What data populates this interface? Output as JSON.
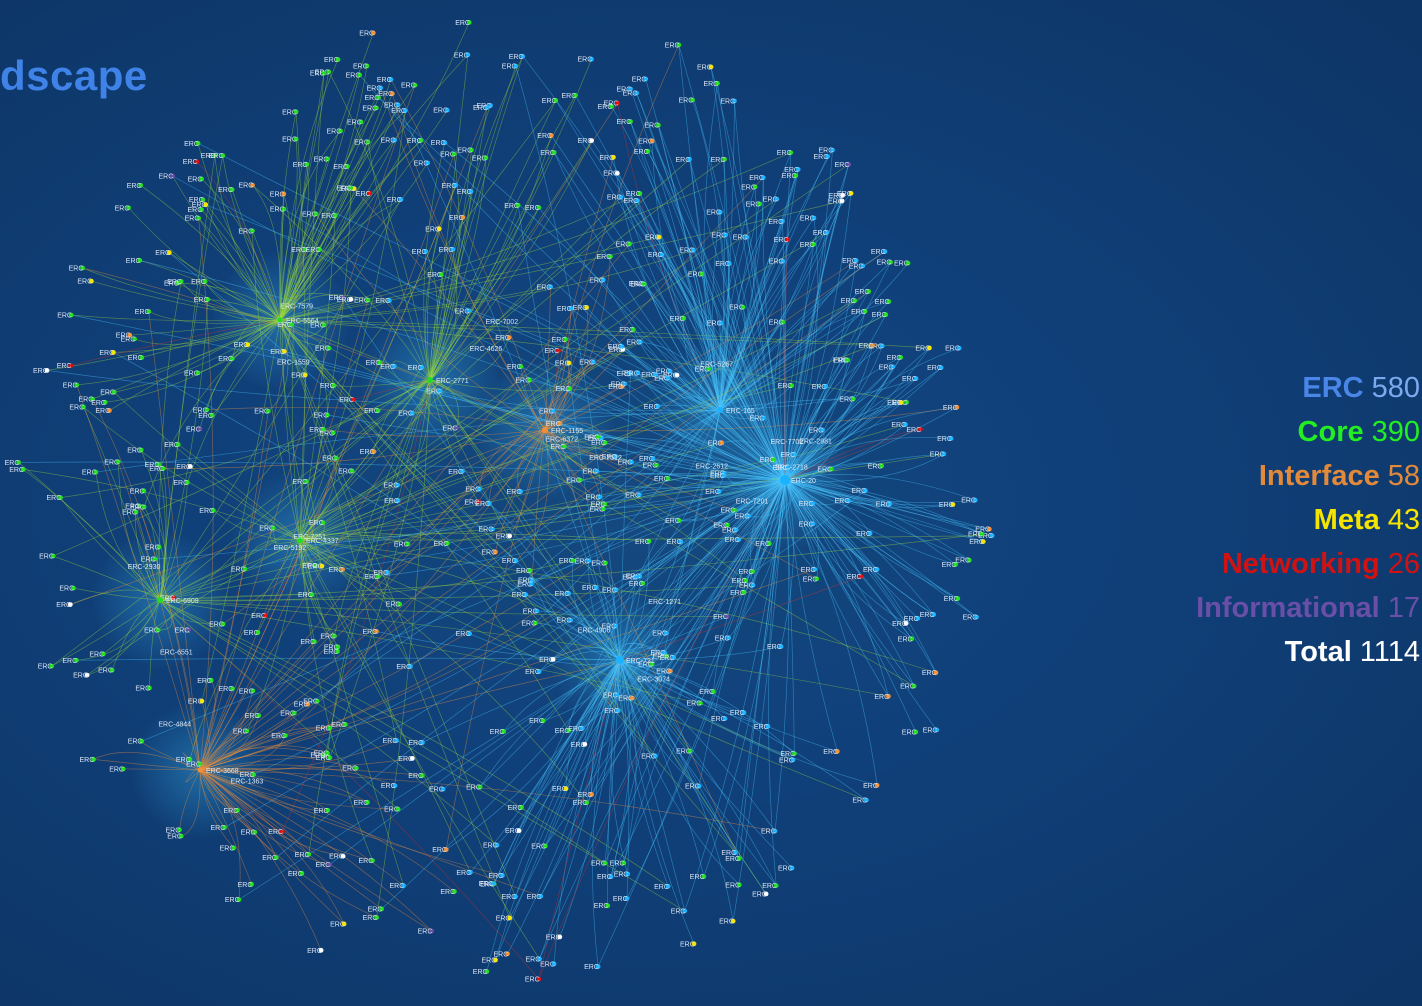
{
  "title": "dscape",
  "colors": {
    "ERC": "#4a86e8",
    "Core": "#22dd22",
    "Interface": "#f0913a",
    "Meta": "#f5e400",
    "Networking": "#e01010",
    "Informational": "#6a4fa8",
    "Total": "#ffffff",
    "hub": "#1bb3ff"
  },
  "legend": [
    {
      "name": "ERC",
      "count": "580",
      "color": "#4a86e8",
      "count_color": "#7aa9f0"
    },
    {
      "name": "Core",
      "count": "390",
      "color": "#22ee22",
      "count_color": "#22ee22"
    },
    {
      "name": "Interface",
      "count": "58",
      "color": "#e2893a",
      "count_color": "#e2893a"
    },
    {
      "name": "Meta",
      "count": "43",
      "color": "#f5e400",
      "count_color": "#f5e400"
    },
    {
      "name": "Networking",
      "count": "26",
      "color": "#d01212",
      "count_color": "#d01212"
    },
    {
      "name": "Informational",
      "count": "17",
      "color": "#6a4fa8",
      "count_color": "#6a4fa8"
    },
    {
      "name": "Total",
      "count": "1114",
      "color": "#ffffff",
      "count_color": "#ffffff"
    }
  ],
  "node_labels": [
    "ERC-20",
    "ERC-721",
    "ERC-165",
    "ERC-1155",
    "ERC-2771",
    "ERC-4337",
    "ERC-6909",
    "ERC-5564",
    "ERC-3668",
    "ERC-7201",
    "ERC-1271",
    "ERC-2612",
    "ERC-7512",
    "ERC-4626",
    "ERC-5192",
    "ERC-6551",
    "ERC-7579",
    "ERC-1363",
    "ERC-2981",
    "ERC-4906",
    "ERC-5267",
    "ERC-6372",
    "ERC-7002",
    "ERC-7251",
    "ERC-2930",
    "ERC-1559",
    "ERC-4844",
    "ERC-2718",
    "ERC-3074",
    "ERC-7702"
  ]
}
